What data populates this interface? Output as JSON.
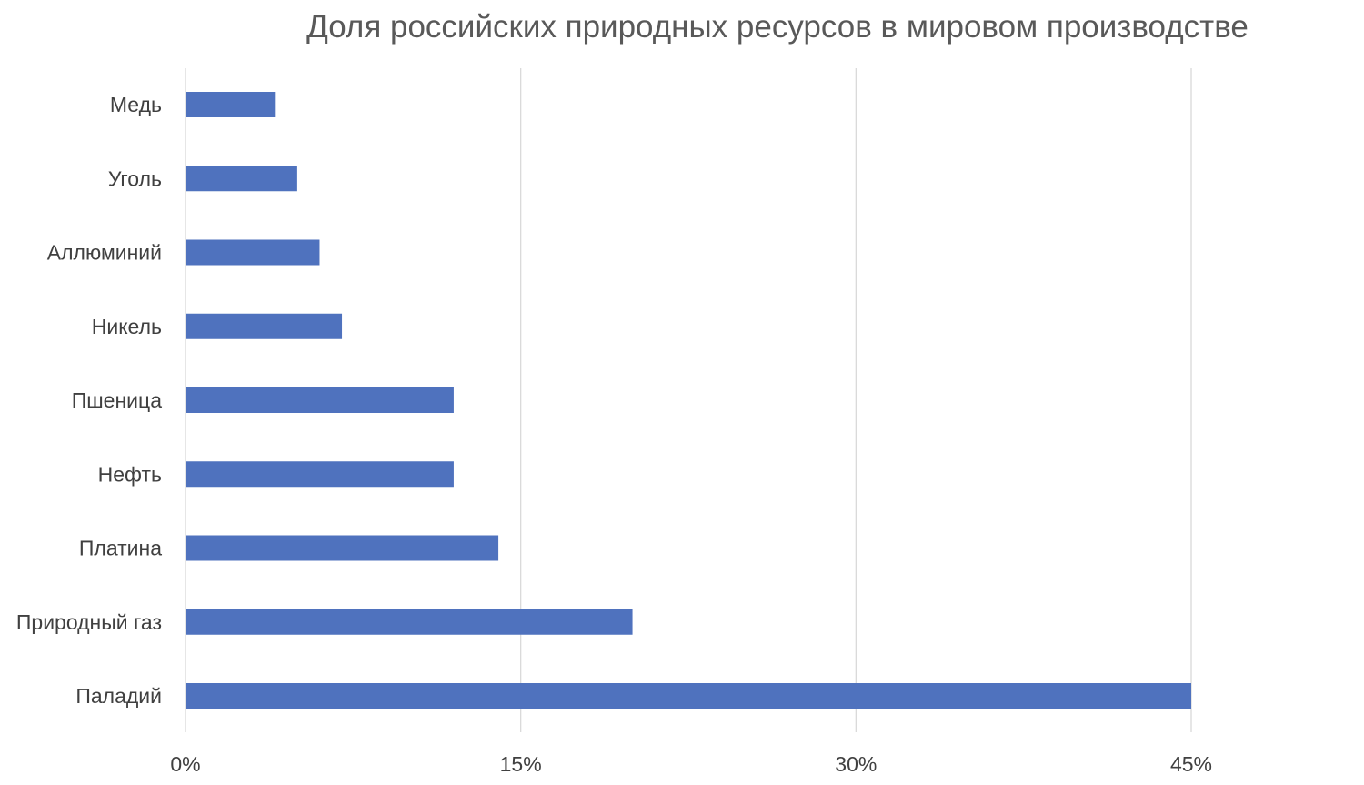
{
  "chart_data": {
    "type": "bar",
    "orientation": "horizontal",
    "title": "Доля российских природных ресурсов в мировом производстве",
    "categories": [
      "Медь",
      "Уголь",
      "Аллюминий",
      "Никель",
      "Пшеница",
      "Нефть",
      "Платина",
      "Природный газ",
      "Паладий"
    ],
    "values": [
      4,
      5,
      6,
      7,
      12,
      12,
      14,
      20,
      45
    ],
    "value_unit": "%",
    "xlim": [
      0,
      50
    ],
    "xticks": [
      0,
      15,
      30,
      45
    ],
    "xtick_labels": [
      "0%",
      "15%",
      "30%",
      "45%"
    ],
    "xlabel": "",
    "ylabel": "",
    "grid": "vertical",
    "legend": "none",
    "bar_color": "#4F72BE",
    "grid_color": "#D9D9D9",
    "axis_text_color": "#404040",
    "title_color": "#595959"
  }
}
